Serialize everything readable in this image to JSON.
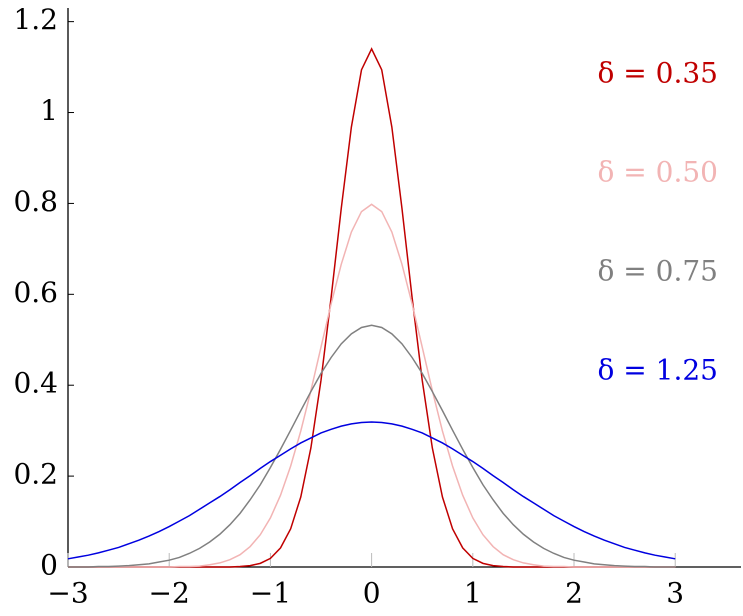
{
  "chart_data": {
    "type": "line",
    "x": [
      -3,
      -2.9,
      -2.8,
      -2.7,
      -2.6,
      -2.5,
      -2.4,
      -2.3,
      -2.2,
      -2.1,
      -2,
      -1.9,
      -1.8,
      -1.7,
      -1.6,
      -1.5,
      -1.4,
      -1.3,
      -1.2,
      -1.1,
      -1,
      -0.9,
      -0.8,
      -0.7,
      -0.6,
      -0.5,
      -0.4,
      -0.3,
      -0.2,
      -0.1,
      0,
      0.1,
      0.2,
      0.3,
      0.4,
      0.5,
      0.6,
      0.7,
      0.8,
      0.9,
      1,
      1.1,
      1.2,
      1.3,
      1.4,
      1.5,
      1.6,
      1.7,
      1.8,
      1.9,
      2,
      2.1,
      2.2,
      2.3,
      2.4,
      2.5,
      2.6,
      2.7,
      2.8,
      2.9,
      3
    ],
    "series": [
      {
        "name": "δ = 0.35",
        "color": "#c00000",
        "values": [
          0,
          0,
          0,
          0,
          0,
          0,
          0,
          0,
          0,
          0,
          0,
          0,
          0,
          0,
          0,
          0,
          0,
          0.001,
          0.003,
          0.008,
          0.019,
          0.042,
          0.084,
          0.154,
          0.262,
          0.411,
          0.593,
          0.789,
          0.968,
          1.094,
          1.14,
          1.094,
          0.968,
          0.789,
          0.593,
          0.411,
          0.262,
          0.154,
          0.084,
          0.042,
          0.019,
          0.008,
          0.003,
          0.001,
          0,
          0,
          0,
          0,
          0,
          0,
          0,
          0,
          0,
          0,
          0,
          0,
          0,
          0,
          0,
          0,
          0
        ]
      },
      {
        "name": "δ = 0.50",
        "color": "#f2b4b4",
        "values": [
          0,
          0,
          0,
          0,
          0,
          0,
          0,
          0,
          0,
          0,
          0,
          0.001,
          0.001,
          0.002,
          0.005,
          0.009,
          0.016,
          0.027,
          0.045,
          0.071,
          0.108,
          0.158,
          0.222,
          0.299,
          0.388,
          0.484,
          0.579,
          0.666,
          0.737,
          0.782,
          0.798,
          0.782,
          0.737,
          0.666,
          0.579,
          0.484,
          0.388,
          0.299,
          0.222,
          0.158,
          0.108,
          0.071,
          0.045,
          0.027,
          0.016,
          0.009,
          0.005,
          0.002,
          0.001,
          0.001,
          0,
          0,
          0,
          0,
          0,
          0,
          0,
          0,
          0,
          0,
          0
        ]
      },
      {
        "name": "δ = 0.75",
        "color": "#808080",
        "values": [
          0,
          0,
          0,
          0.001,
          0.001,
          0.002,
          0.003,
          0.005,
          0.007,
          0.011,
          0.015,
          0.021,
          0.03,
          0.041,
          0.055,
          0.072,
          0.093,
          0.118,
          0.148,
          0.181,
          0.219,
          0.259,
          0.301,
          0.344,
          0.386,
          0.426,
          0.461,
          0.491,
          0.513,
          0.527,
          0.532,
          0.527,
          0.513,
          0.491,
          0.461,
          0.426,
          0.386,
          0.344,
          0.301,
          0.259,
          0.219,
          0.181,
          0.148,
          0.118,
          0.093,
          0.072,
          0.055,
          0.041,
          0.03,
          0.021,
          0.015,
          0.011,
          0.007,
          0.005,
          0.003,
          0.002,
          0.001,
          0.001,
          0,
          0,
          0
        ]
      },
      {
        "name": "δ = 1.25",
        "color": "#0000e0",
        "values": [
          0.018,
          0.022,
          0.026,
          0.031,
          0.037,
          0.043,
          0.051,
          0.059,
          0.068,
          0.078,
          0.089,
          0.101,
          0.113,
          0.127,
          0.141,
          0.155,
          0.17,
          0.186,
          0.201,
          0.217,
          0.232,
          0.246,
          0.26,
          0.273,
          0.284,
          0.295,
          0.303,
          0.31,
          0.315,
          0.318,
          0.319,
          0.318,
          0.315,
          0.31,
          0.303,
          0.295,
          0.284,
          0.273,
          0.26,
          0.246,
          0.232,
          0.217,
          0.201,
          0.186,
          0.17,
          0.155,
          0.141,
          0.127,
          0.113,
          0.101,
          0.089,
          0.078,
          0.068,
          0.059,
          0.051,
          0.043,
          0.037,
          0.031,
          0.026,
          0.022,
          0.018
        ]
      }
    ],
    "xlim": [
      -3,
      3.65
    ],
    "ylim": [
      0,
      1.23
    ],
    "xticks": [
      {
        "value": -3,
        "label": "−3"
      },
      {
        "value": -2,
        "label": "−2"
      },
      {
        "value": -1,
        "label": "−1"
      },
      0,
      1,
      2,
      3
    ],
    "yticks": [
      0,
      0.2,
      0.4,
      0.6,
      0.8,
      {
        "value": 1,
        "label": "1"
      },
      1.2
    ],
    "legend": "right"
  }
}
